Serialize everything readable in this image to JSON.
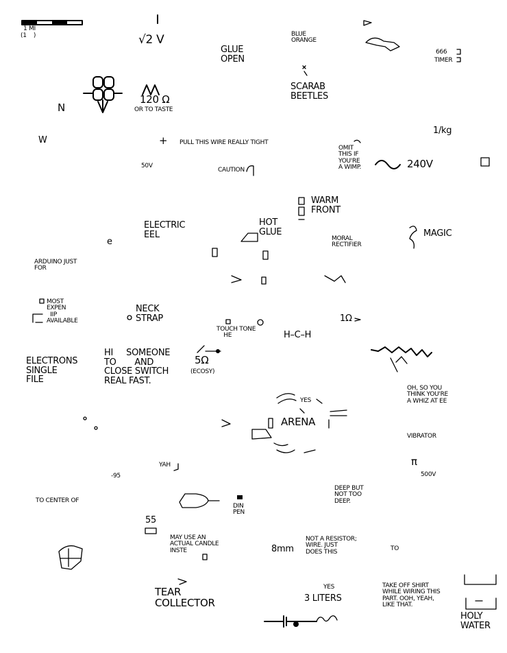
{
  "labels": {
    "scale_mi": "1 mi",
    "scale_sub": "(1    )",
    "sqrt2v": "√2 V",
    "glue_open": "GLUE\nOPEN",
    "blue_orange": "BLUE\nORANGE",
    "scarab": "SCARAB\nBEETLES",
    "timer_num": "666",
    "timer": "TIMER",
    "n": "N",
    "ohm120": "120 Ω",
    "or_to_taste": "OR TO TASTE",
    "per_kg": "1/kg",
    "w": "W",
    "plus": "+",
    "pull_wire": "PULL THIS WIRE REALLY TIGHT",
    "omit": "OMIT\nTHIS IF\nYOU'RE\nA WIMP.",
    "v240": "240V",
    "v50": "50V",
    "caution": "CAUTION",
    "warm_front": "WARM\nFRONT",
    "hot_glue": "HOT\nGLUE",
    "electric_eel": "ELECTRIC\nEEL",
    "e": "e",
    "moral_rectifier": "MORAL\nRECTIFIER",
    "magic": "MAGIC",
    "arduino": "ARDUINO JUST\nFOR",
    "most_expensive": "MOST\nEXPEN\n  IIP\nAVAILABLE",
    "neck_strap": "NECK\nSTRAP",
    "touch_tone": "TOUCH TONE\n    HE",
    "hch": "H–C–H",
    "ohm1": "1Ω",
    "electrons": "ELECTRONS\nSINGLE\nFILE",
    "hi_someone": "HI     SOMEONE\nTO       AND\nCLOSE SWITCH\nREAL FAST.",
    "ohm5": "5Ω",
    "ecosy": "(ECOSY)",
    "whiz": "OH, SO YOU\nTHINK YOU'RE\nA WHIZ AT EE",
    "arena": "ARENA",
    "yes_small": "YES",
    "vibrator": "VIBRATOR",
    "pi": "π",
    "v500": "500V",
    "yah": "YAH",
    "minus95": "-95",
    "to_center": "TO CENTER OF",
    "deep": "DEEP BUT\nNOT TOO\nDEEP.",
    "din_pen": "DIN\nPEN",
    "n55": "55",
    "candle": "MAY USE AN\nACTUAL CANDLE\nINSTE",
    "mm8": "8mm",
    "not_resistor": "NOT A RESISTOR;\nWIRE. JUST\nDOES THIS",
    "to": "TO",
    "tear": "TEAR\nCOLLECTOR",
    "yes": "YES",
    "liters": "3 LITERS",
    "shirt": "TAKE OFF SHIRT\nWHILE WIRING THIS\nPART. OOH, YEAH,\nLIKE THAT.",
    "holy_water": "HOLY\nWATER"
  }
}
